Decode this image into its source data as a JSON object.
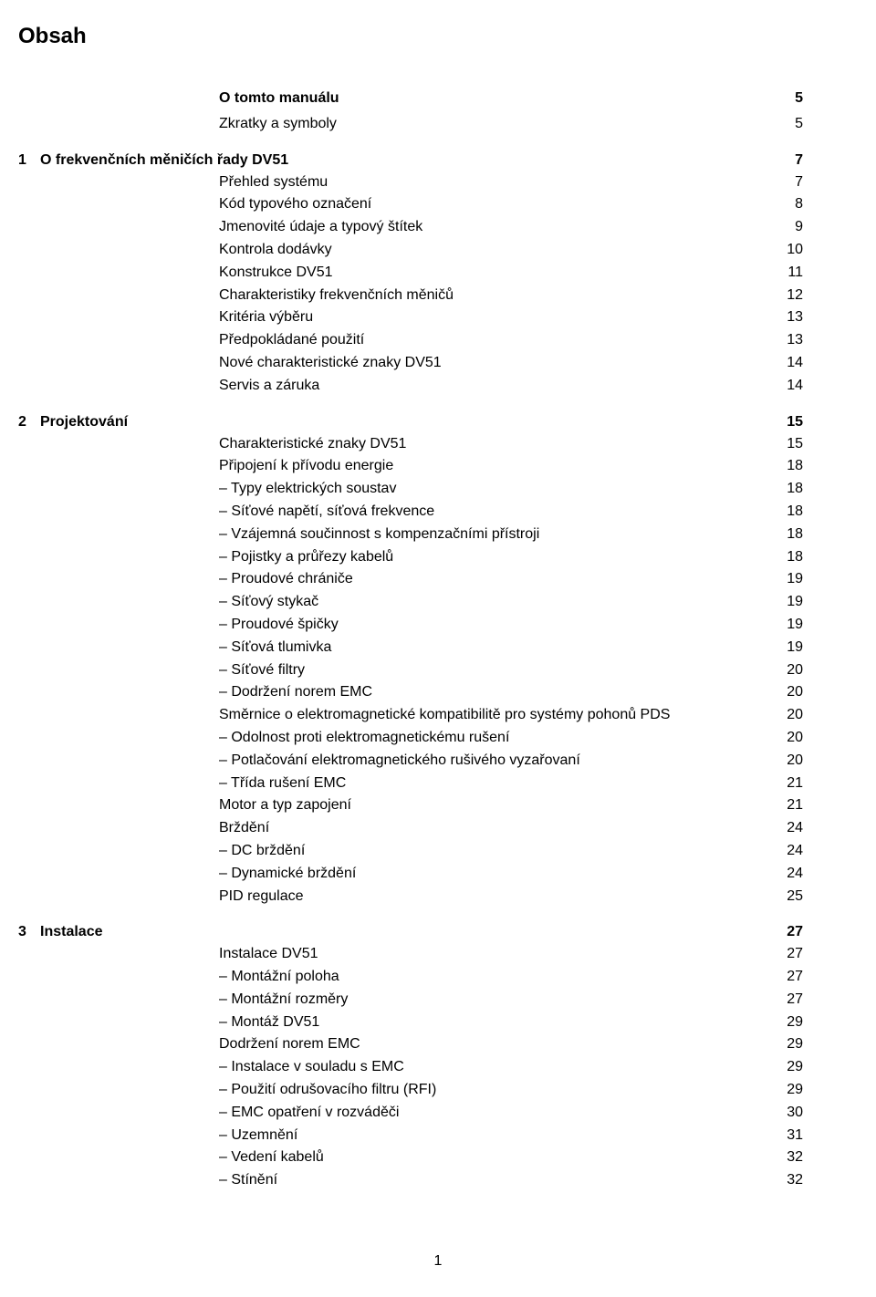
{
  "title": "Obsah",
  "footer_page": "1",
  "blocks": [
    {
      "type": "plain",
      "head": {
        "label": "O tomto manuálu",
        "page": "5"
      },
      "items": [
        {
          "label": "Zkratky a symboly",
          "page": "5"
        }
      ]
    },
    {
      "type": "section",
      "num": "1",
      "head": {
        "label": "O frekvenčních měničích řady DV51",
        "page": "7"
      },
      "items": [
        {
          "label": "Přehled systému",
          "page": "7"
        },
        {
          "label": "Kód typového označení",
          "page": "8"
        },
        {
          "label": "Jmenovité údaje a typový štítek",
          "page": "9"
        },
        {
          "label": "Kontrola dodávky",
          "page": "10"
        },
        {
          "label": "Konstrukce DV51",
          "page": "11"
        },
        {
          "label": "Charakteristiky frekvenčních měničů",
          "page": "12"
        },
        {
          "label": "Kritéria výběru",
          "page": "13"
        },
        {
          "label": "Předpokládané použití",
          "page": "13"
        },
        {
          "label": "Nové charakteristické znaky DV51",
          "page": "14"
        },
        {
          "label": "Servis a záruka",
          "page": "14"
        }
      ]
    },
    {
      "type": "section",
      "num": "2",
      "head": {
        "label": "Projektování",
        "page": "15"
      },
      "items": [
        {
          "label": "Charakteristické znaky DV51",
          "page": "15"
        },
        {
          "label": "Připojení k přívodu energie",
          "page": "18"
        },
        {
          "label": "– Typy elektrických soustav",
          "page": "18"
        },
        {
          "label": "– Síťové napětí, síťová frekvence",
          "page": "18"
        },
        {
          "label": "– Vzájemná součinnost s kompenzačními přístroji",
          "page": "18"
        },
        {
          "label": "– Pojistky a průřezy kabelů",
          "page": "18"
        },
        {
          "label": "– Proudové chrániče",
          "page": "19"
        },
        {
          "label": "– Síťový stykač",
          "page": "19"
        },
        {
          "label": "– Proudové  špičky",
          "page": "19"
        },
        {
          "label": "– Síťová tlumivka",
          "page": "19"
        },
        {
          "label": "– Síťové filtry",
          "page": "20"
        },
        {
          "label": "– Dodržení norem EMC",
          "page": "20"
        },
        {
          "label": "Směrnice o elektromagnetické kompatibilitě pro systémy pohonů PDS",
          "page": "20"
        },
        {
          "label": "– Odolnost proti elektromagnetickému rušení",
          "page": "20"
        },
        {
          "label": "– Potlačování elektromagnetického rušivého vyzařovaní",
          "page": "20"
        },
        {
          "label": "– Třída rušení EMC",
          "page": "21"
        },
        {
          "label": "Motor a typ zapojení",
          "page": "21"
        },
        {
          "label": "Brždění",
          "page": "24"
        },
        {
          "label": "– DC brždění",
          "page": "24"
        },
        {
          "label": "– Dynamické brždění",
          "page": "24"
        },
        {
          "label": "PID regulace",
          "page": "25"
        }
      ]
    },
    {
      "type": "section",
      "num": "3",
      "head": {
        "label": "Instalace",
        "page": "27"
      },
      "items": [
        {
          "label": "Instalace DV51",
          "page": "27"
        },
        {
          "label": "– Montážní poloha",
          "page": "27"
        },
        {
          "label": "– Montážní rozměry",
          "page": "27"
        },
        {
          "label": "– Montáž DV51",
          "page": "29"
        },
        {
          "label": "Dodržení norem EMC",
          "page": "29"
        },
        {
          "label": "– Instalace v souladu s EMC",
          "page": "29"
        },
        {
          "label": "– Použití odrušovacího filtru (RFI)",
          "page": "29"
        },
        {
          "label": "– EMC opatření v rozváděči",
          "page": "30"
        },
        {
          "label": "– Uzemnění",
          "page": "31"
        },
        {
          "label": "– Vedení kabelů",
          "page": "32"
        },
        {
          "label": "– Stínění",
          "page": "32"
        }
      ]
    }
  ]
}
